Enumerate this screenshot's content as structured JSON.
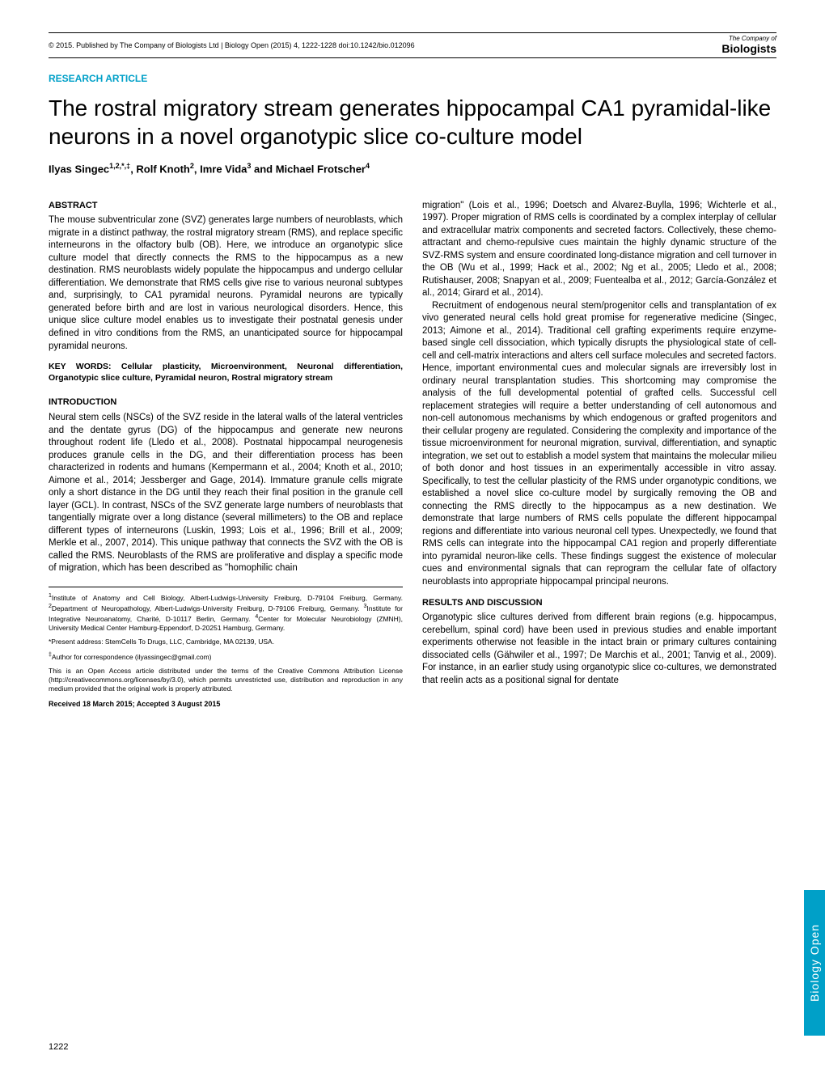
{
  "header": {
    "copyright": "© 2015. Published by The Company of Biologists Ltd | Biology Open (2015) 4, 1222-1228 doi:10.1242/bio.012096",
    "logo_top": "The Company of",
    "logo_bottom": "Biologists"
  },
  "article_type": "RESEARCH ARTICLE",
  "title": "The rostral migratory stream generates hippocampal CA1 pyramidal-like neurons in a novel organotypic slice co-culture model",
  "authors_html": "Ilyas Singec<sup>1,2,*,‡</sup>, Rolf Knoth<sup>2</sup>, Imre Vida<sup>3</sup> and Michael Frotscher<sup>4</sup>",
  "abstract": {
    "head": "ABSTRACT",
    "text": "The mouse subventricular zone (SVZ) generates large numbers of neuroblasts, which migrate in a distinct pathway, the rostral migratory stream (RMS), and replace specific interneurons in the olfactory bulb (OB). Here, we introduce an organotypic slice culture model that directly connects the RMS to the hippocampus as a new destination. RMS neuroblasts widely populate the hippocampus and undergo cellular differentiation. We demonstrate that RMS cells give rise to various neuronal subtypes and, surprisingly, to CA1 pyramidal neurons. Pyramidal neurons are typically generated before birth and are lost in various neurological disorders. Hence, this unique slice culture model enables us to investigate their postnatal genesis under defined in vitro conditions from the RMS, an unanticipated source for hippocampal pyramidal neurons."
  },
  "keywords": "KEY WORDS: Cellular plasticity, Microenvironment, Neuronal differentiation, Organotypic slice culture, Pyramidal neuron, Rostral migratory stream",
  "intro": {
    "head": "INTRODUCTION",
    "p1": "Neural stem cells (NSCs) of the SVZ reside in the lateral walls of the lateral ventricles and the dentate gyrus (DG) of the hippocampus and generate new neurons throughout rodent life (Lledo et al., 2008). Postnatal hippocampal neurogenesis produces granule cells in the DG, and their differentiation process has been characterized in rodents and humans (Kempermann et al., 2004; Knoth et al., 2010; Aimone et al., 2014; Jessberger and Gage, 2014). Immature granule cells migrate only a short distance in the DG until they reach their final position in the granule cell layer (GCL). In contrast, NSCs of the SVZ generate large numbers of neuroblasts that tangentially migrate over a long distance (several millimeters) to the OB and replace different types of interneurons (Luskin, 1993; Lois et al., 1996; Brill et al., 2009; Merkle et al., 2007, 2014). This unique pathway that connects the SVZ with the OB is called the RMS. Neuroblasts of the RMS are proliferative and display a specific mode of migration, which has been described as \"homophilic chain",
    "p2_right": "migration\" (Lois et al., 1996; Doetsch and Alvarez-Buylla, 1996; Wichterle et al., 1997). Proper migration of RMS cells is coordinated by a complex interplay of cellular and extracellular matrix components and secreted factors. Collectively, these chemo-attractant and chemo-repulsive cues maintain the highly dynamic structure of the SVZ-RMS system and ensure coordinated long-distance migration and cell turnover in the OB (Wu et al., 1999; Hack et al., 2002; Ng et al., 2005; Lledo et al., 2008; Rutishauser, 2008; Snapyan et al., 2009; Fuentealba et al., 2012; García-González et al., 2014; Girard et al., 2014).",
    "p3_right": "Recruitment of endogenous neural stem/progenitor cells and transplantation of ex vivo generated neural cells hold great promise for regenerative medicine (Singec, 2013; Aimone et al., 2014). Traditional cell grafting experiments require enzyme-based single cell dissociation, which typically disrupts the physiological state of cell-cell and cell-matrix interactions and alters cell surface molecules and secreted factors. Hence, important environmental cues and molecular signals are irreversibly lost in ordinary neural transplantation studies. This shortcoming may compromise the analysis of the full developmental potential of grafted cells. Successful cell replacement strategies will require a better understanding of cell autonomous and non-cell autonomous mechanisms by which endogenous or grafted progenitors and their cellular progeny are regulated. Considering the complexity and importance of the tissue microenvironment for neuronal migration, survival, differentiation, and synaptic integration, we set out to establish a model system that maintains the molecular milieu of both donor and host tissues in an experimentally accessible in vitro assay. Specifically, to test the cellular plasticity of the RMS under organotypic conditions, we established a novel slice co-culture model by surgically removing the OB and connecting the RMS directly to the hippocampus as a new destination. We demonstrate that large numbers of RMS cells populate the different hippocampal regions and differentiate into various neuronal cell types. Unexpectedly, we found that RMS cells can integrate into the hippocampal CA1 region and properly differentiate into pyramidal neuron-like cells. These findings suggest the existence of molecular cues and environmental signals that can reprogram the cellular fate of olfactory neuroblasts into appropriate hippocampal principal neurons."
  },
  "results": {
    "head": "RESULTS AND DISCUSSION",
    "p1": "Organotypic slice cultures derived from different brain regions (e.g. hippocampus, cerebellum, spinal cord) have been used in previous studies and enable important experiments otherwise not feasible in the intact brain or primary cultures containing dissociated cells (Gähwiler et al., 1997; De Marchis et al., 2001; Tanvig et al., 2009). For instance, in an earlier study using organotypic slice co-cultures, we demonstrated that reelin acts as a positional signal for dentate"
  },
  "affiliations": {
    "a1": "1Institute of Anatomy and Cell Biology, Albert-Ludwigs-University Freiburg, D-79104 Freiburg, Germany. 2Department of Neuropathology, Albert-Ludwigs-University Freiburg, D-79106 Freiburg, Germany. 3Institute for Integrative Neuroanatomy, Charité, D-10117 Berlin, Germany. 4Center for Molecular Neurobiology (ZMNH), University Medical Center Hamburg-Eppendorf, D-20251 Hamburg, Germany.",
    "present": "*Present address: StemCells To Drugs, LLC, Cambridge, MA 02139, USA.",
    "corr": "‡Author for correspondence (ilyassingec@gmail.com)",
    "license": "This is an Open Access article distributed under the terms of the Creative Commons Attribution License (http://creativecommons.org/licenses/by/3.0), which permits unrestricted use, distribution and reproduction in any medium provided that the original work is properly attributed.",
    "received": "Received 18 March 2015; Accepted 3 August 2015"
  },
  "page_number": "1222",
  "side_tab": "Biology Open",
  "colors": {
    "accent": "#00a0c8",
    "text": "#000000",
    "background": "#ffffff"
  }
}
